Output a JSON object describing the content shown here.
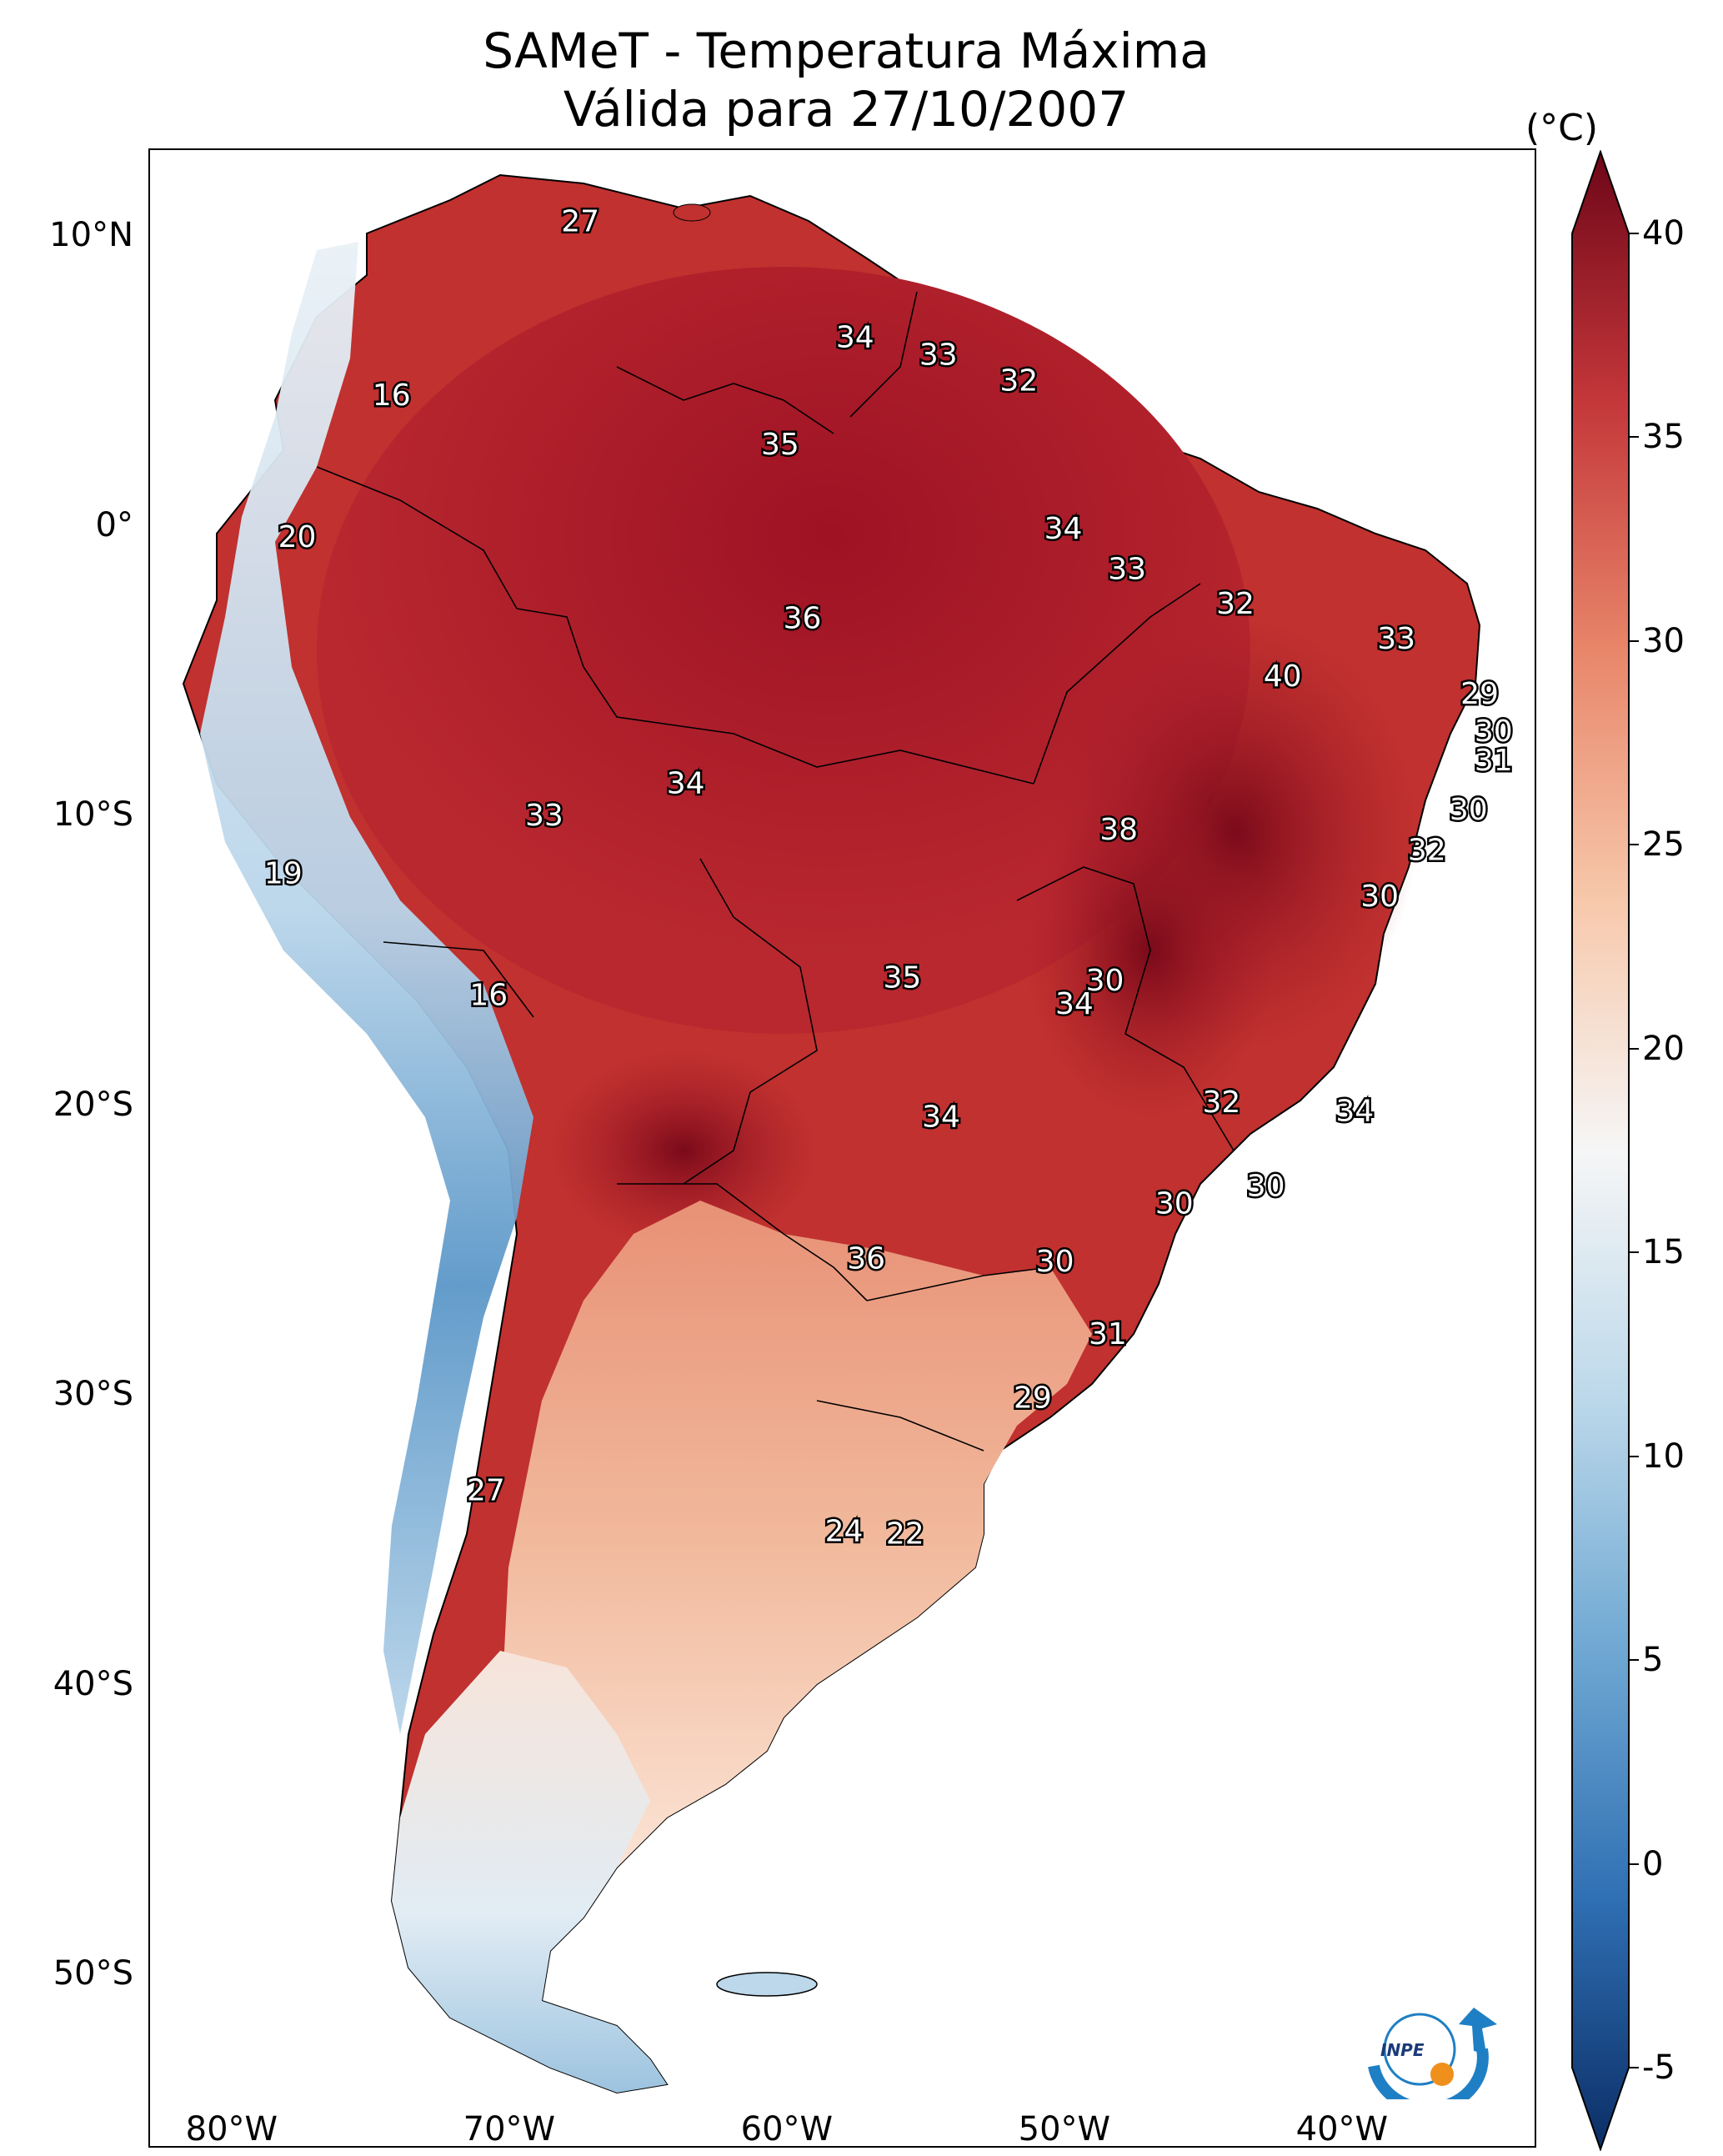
{
  "title": {
    "line1": "SAMeT - Temperatura Máxima",
    "line2": "Válida para 27/10/2007"
  },
  "map": {
    "lon_range": [
      -83,
      -33
    ],
    "lat_range": [
      -56,
      13
    ],
    "lat_ticks": [
      {
        "lat": 10,
        "label": "10°N"
      },
      {
        "lat": 0,
        "label": "0°"
      },
      {
        "lat": -10,
        "label": "10°S"
      },
      {
        "lat": -20,
        "label": "20°S"
      },
      {
        "lat": -30,
        "label": "30°S"
      },
      {
        "lat": -40,
        "label": "40°S"
      },
      {
        "lat": -50,
        "label": "50°S"
      }
    ],
    "lon_ticks": [
      {
        "lon": -80,
        "label": "80°W"
      },
      {
        "lon": -70,
        "label": "70°W"
      },
      {
        "lon": -60,
        "label": "60°W"
      },
      {
        "lon": -50,
        "label": "50°W"
      },
      {
        "lon": -40,
        "label": "40°W"
      }
    ],
    "contour_labels": [
      {
        "lon": -67.5,
        "lat": 10.6,
        "text": "27"
      },
      {
        "lon": -57.6,
        "lat": 6.6,
        "text": "34"
      },
      {
        "lon": -54.6,
        "lat": 6.0,
        "text": "33"
      },
      {
        "lon": -51.7,
        "lat": 5.1,
        "text": "32"
      },
      {
        "lon": -74.3,
        "lat": 4.6,
        "text": "16"
      },
      {
        "lon": -60.3,
        "lat": 2.9,
        "text": "35"
      },
      {
        "lon": -50.1,
        "lat": 0.0,
        "text": "34"
      },
      {
        "lon": -47.8,
        "lat": -1.4,
        "text": "33"
      },
      {
        "lon": -77.7,
        "lat": -0.3,
        "text": "20"
      },
      {
        "lon": -43.9,
        "lat": -2.6,
        "text": "32"
      },
      {
        "lon": -59.5,
        "lat": -3.1,
        "text": "36"
      },
      {
        "lon": -38.1,
        "lat": -3.8,
        "text": "33"
      },
      {
        "lon": -42.2,
        "lat": -5.1,
        "text": "40"
      },
      {
        "lon": -35.1,
        "lat": -5.7,
        "text": "29"
      },
      {
        "lon": -34.6,
        "lat": -7.0,
        "text": "30"
      },
      {
        "lon": -34.6,
        "lat": -8.0,
        "text": "31"
      },
      {
        "lon": -63.7,
        "lat": -8.8,
        "text": "34"
      },
      {
        "lon": -68.8,
        "lat": -9.9,
        "text": "33"
      },
      {
        "lon": -35.5,
        "lat": -9.7,
        "text": "30"
      },
      {
        "lon": -48.1,
        "lat": -10.4,
        "text": "38"
      },
      {
        "lon": -37.0,
        "lat": -11.1,
        "text": "32"
      },
      {
        "lon": -78.2,
        "lat": -11.9,
        "text": "19"
      },
      {
        "lon": -38.7,
        "lat": -12.7,
        "text": "30"
      },
      {
        "lon": -55.9,
        "lat": -15.5,
        "text": "35"
      },
      {
        "lon": -48.6,
        "lat": -15.6,
        "text": "30"
      },
      {
        "lon": -49.7,
        "lat": -16.4,
        "text": "34"
      },
      {
        "lon": -70.8,
        "lat": -16.1,
        "text": "16"
      },
      {
        "lon": -44.4,
        "lat": -19.8,
        "text": "32"
      },
      {
        "lon": -54.5,
        "lat": -20.3,
        "text": "34"
      },
      {
        "lon": -39.6,
        "lat": -20.1,
        "text": "34"
      },
      {
        "lon": -42.8,
        "lat": -22.7,
        "text": "30"
      },
      {
        "lon": -46.1,
        "lat": -23.3,
        "text": "30"
      },
      {
        "lon": -57.2,
        "lat": -25.2,
        "text": "36"
      },
      {
        "lon": -50.4,
        "lat": -25.3,
        "text": "30"
      },
      {
        "lon": -48.5,
        "lat": -27.8,
        "text": "31"
      },
      {
        "lon": -51.2,
        "lat": -30.0,
        "text": "29"
      },
      {
        "lon": -70.9,
        "lat": -33.2,
        "text": "27"
      },
      {
        "lon": -58.0,
        "lat": -34.6,
        "text": "24"
      },
      {
        "lon": -55.8,
        "lat": -34.7,
        "text": "22"
      }
    ]
  },
  "colorbar": {
    "unit_label": "(°C)",
    "min": -5,
    "max": 40,
    "ticks": [
      "40",
      "35",
      "30",
      "25",
      "20",
      "15",
      "10",
      "5",
      "0",
      "-5"
    ],
    "colors": [
      "#0b2e66",
      "#2f6fb3",
      "#6fa8d3",
      "#bcd8ea",
      "#f6f6f6",
      "#f7c8ab",
      "#e8866a",
      "#c4373a",
      "#6e0618"
    ]
  },
  "logo": {
    "text": "INPE"
  }
}
